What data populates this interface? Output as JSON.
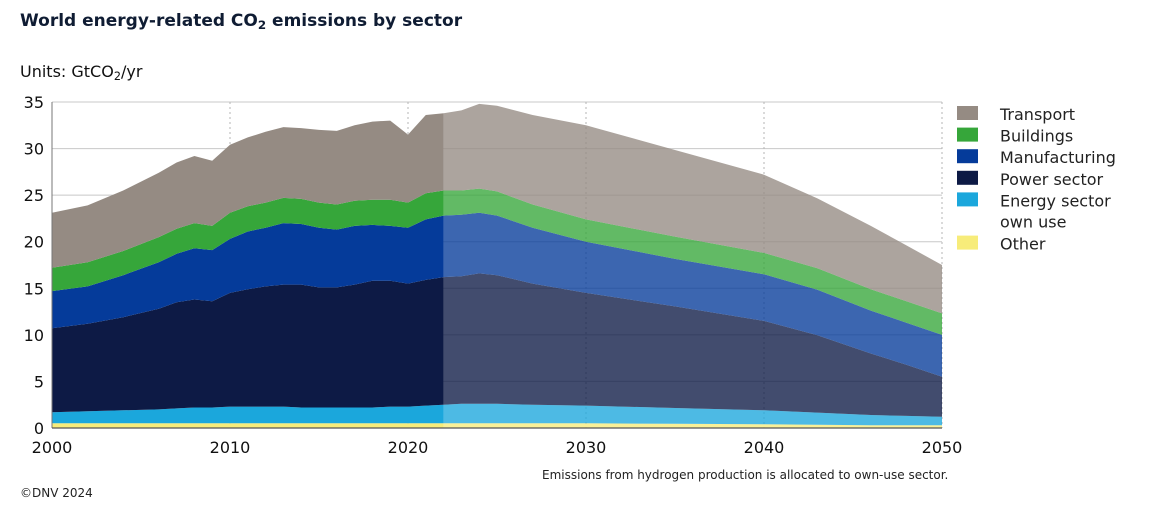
{
  "title_prefix": "World energy-related CO",
  "title_sub": "2",
  "title_suffix": " emissions by sector",
  "units_prefix": "Units: GtCO",
  "units_sub": "2",
  "units_suffix": "/yr",
  "footnote": "Emissions from hydrogen production is allocated to own-use sector.",
  "copyright": "©DNV 2024",
  "chart_data": {
    "type": "area",
    "stacked": true,
    "x": [
      2000,
      2002,
      2004,
      2006,
      2007,
      2008,
      2009,
      2010,
      2011,
      2012,
      2013,
      2014,
      2015,
      2016,
      2017,
      2018,
      2019,
      2020,
      2021,
      2022,
      2023,
      2024,
      2025,
      2027,
      2030,
      2035,
      2040,
      2043,
      2046,
      2048,
      2050
    ],
    "series": [
      {
        "name": "Other",
        "color": "#f7ec7a",
        "values": [
          0.5,
          0.5,
          0.5,
          0.5,
          0.5,
          0.5,
          0.5,
          0.5,
          0.5,
          0.5,
          0.5,
          0.5,
          0.5,
          0.5,
          0.5,
          0.5,
          0.5,
          0.5,
          0.5,
          0.5,
          0.5,
          0.5,
          0.5,
          0.5,
          0.5,
          0.45,
          0.4,
          0.35,
          0.3,
          0.3,
          0.3
        ]
      },
      {
        "name": "Energy sector own use",
        "color": "#1ba7dc",
        "values": [
          1.2,
          1.3,
          1.4,
          1.5,
          1.6,
          1.7,
          1.7,
          1.8,
          1.8,
          1.8,
          1.8,
          1.7,
          1.7,
          1.7,
          1.7,
          1.7,
          1.8,
          1.8,
          1.9,
          2.0,
          2.1,
          2.1,
          2.1,
          2.0,
          1.9,
          1.7,
          1.5,
          1.3,
          1.1,
          1.0,
          0.9
        ]
      },
      {
        "name": "Power sector",
        "color": "#0d1a45",
        "values": [
          9.0,
          9.4,
          10.0,
          10.8,
          11.4,
          11.6,
          11.4,
          12.2,
          12.6,
          12.9,
          13.1,
          13.2,
          12.9,
          12.9,
          13.2,
          13.6,
          13.5,
          13.2,
          13.5,
          13.7,
          13.7,
          14.0,
          13.8,
          13.0,
          12.1,
          10.9,
          9.6,
          8.3,
          6.6,
          5.5,
          4.3
        ]
      },
      {
        "name": "Manufacturing",
        "color": "#053b9a",
        "values": [
          4.0,
          4.0,
          4.5,
          5.0,
          5.2,
          5.5,
          5.5,
          5.8,
          6.2,
          6.3,
          6.6,
          6.5,
          6.4,
          6.2,
          6.3,
          6.0,
          5.9,
          6.0,
          6.5,
          6.6,
          6.6,
          6.5,
          6.4,
          6.0,
          5.5,
          5.1,
          5.0,
          4.9,
          4.6,
          4.5,
          4.5
        ]
      },
      {
        "name": "Buildings",
        "color": "#36a63a",
        "values": [
          2.5,
          2.6,
          2.6,
          2.7,
          2.7,
          2.7,
          2.6,
          2.8,
          2.7,
          2.7,
          2.7,
          2.7,
          2.7,
          2.7,
          2.7,
          2.7,
          2.8,
          2.7,
          2.8,
          2.7,
          2.6,
          2.6,
          2.6,
          2.5,
          2.4,
          2.4,
          2.3,
          2.3,
          2.3,
          2.3,
          2.3
        ]
      },
      {
        "name": "Transport",
        "color": "#958b83",
        "values": [
          5.9,
          6.1,
          6.5,
          6.9,
          7.1,
          7.2,
          7.0,
          7.3,
          7.4,
          7.6,
          7.6,
          7.6,
          7.8,
          7.9,
          8.1,
          8.4,
          8.5,
          7.3,
          8.4,
          8.3,
          8.6,
          9.1,
          9.2,
          9.6,
          10.1,
          9.3,
          8.4,
          7.5,
          6.8,
          6.0,
          5.2
        ]
      }
    ],
    "legend": [
      "Transport",
      "Buildings",
      "Manufacturing",
      "Power sector",
      "Energy sector own use",
      "Other"
    ],
    "legend_lines": {
      "Energy sector own use": [
        "Energy sector",
        "own use"
      ]
    },
    "legend_position": "right",
    "forecast_start": 2022,
    "xlim": [
      2000,
      2050
    ],
    "ylim": [
      0,
      35
    ],
    "yticks": [
      0,
      5,
      10,
      15,
      20,
      25,
      30,
      35
    ],
    "xticks": [
      2000,
      2010,
      2020,
      2030,
      2040,
      2050
    ],
    "grid": true
  }
}
